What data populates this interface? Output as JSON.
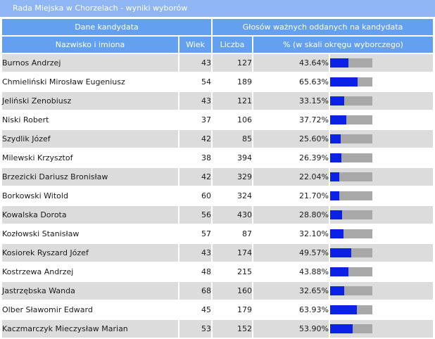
{
  "title": "Rada Miejska w Chorzelach - wyniki wyborów",
  "headers": {
    "group_candidate": "Dane kandydata",
    "group_votes": "Głosów ważnych oddanych na kandydata",
    "name": "Nazwisko i imiona",
    "age": "Wiek",
    "count": "Liczba",
    "percent": "% (w skali okręgu wyborczego)"
  },
  "colors": {
    "header": "#64a0f0",
    "title_bar": "#8fb6f2",
    "bar_fill": "#0b22e6",
    "bar_track": "#a8a8a8",
    "row_alt": "#dcdcdc"
  },
  "candidates": [
    {
      "name": "Burnos Andrzej",
      "age": "43",
      "votes": "127",
      "percent": "43.64%",
      "share": 43.64
    },
    {
      "name": "Chmieliński Mirosław Eugeniusz",
      "age": "54",
      "votes": "189",
      "percent": "65.63%",
      "share": 65.63
    },
    {
      "name": "Jeliński Zenobiusz",
      "age": "43",
      "votes": "121",
      "percent": "33.15%",
      "share": 33.15
    },
    {
      "name": "Niski Robert",
      "age": "37",
      "votes": "106",
      "percent": "37.72%",
      "share": 37.72
    },
    {
      "name": "Szydlik Józef",
      "age": "42",
      "votes": "85",
      "percent": "25.60%",
      "share": 25.6
    },
    {
      "name": "Milewski Krzysztof",
      "age": "38",
      "votes": "394",
      "percent": "26.39%",
      "share": 26.39
    },
    {
      "name": "Brzezicki Dariusz Bronisław",
      "age": "42",
      "votes": "329",
      "percent": "22.04%",
      "share": 22.04
    },
    {
      "name": "Borkowski Witold",
      "age": "60",
      "votes": "324",
      "percent": "21.70%",
      "share": 21.7
    },
    {
      "name": "Kowalska Dorota",
      "age": "56",
      "votes": "430",
      "percent": "28.80%",
      "share": 28.8
    },
    {
      "name": "Kozłowski Stanisław",
      "age": "57",
      "votes": "87",
      "percent": "32.10%",
      "share": 32.1
    },
    {
      "name": "Kosiorek Ryszard Józef",
      "age": "43",
      "votes": "174",
      "percent": "49.57%",
      "share": 49.57
    },
    {
      "name": "Kostrzewa Andrzej",
      "age": "48",
      "votes": "215",
      "percent": "43.88%",
      "share": 43.88
    },
    {
      "name": "Jastrzębska Wanda",
      "age": "68",
      "votes": "160",
      "percent": "32.65%",
      "share": 32.65
    },
    {
      "name": "Olber Sławomir Edward",
      "age": "45",
      "votes": "179",
      "percent": "63.93%",
      "share": 63.93
    },
    {
      "name": "Kaczmarczyk Mieczysław Marian",
      "age": "53",
      "votes": "152",
      "percent": "53.90%",
      "share": 53.9
    }
  ]
}
